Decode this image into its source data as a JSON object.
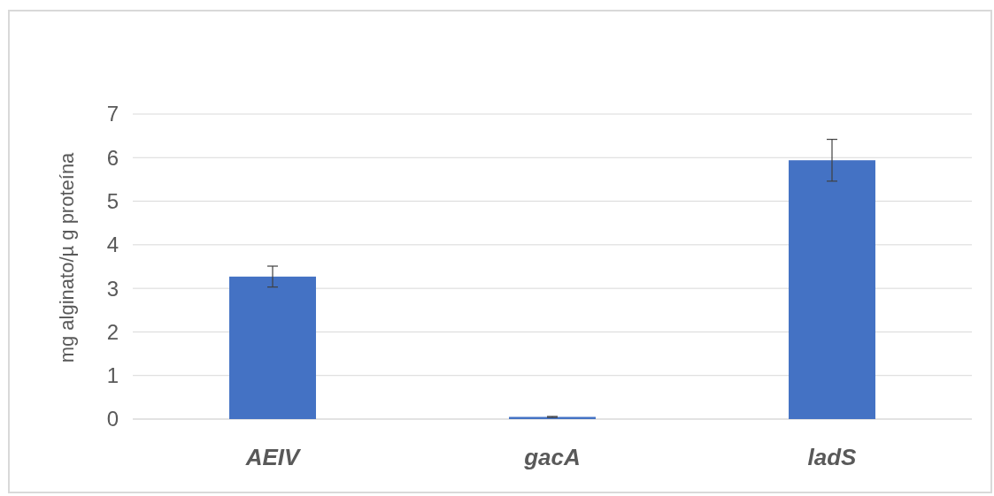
{
  "chart_data": {
    "type": "bar",
    "ylabel": "mg alginato/µ g proteína",
    "categories": [
      "AEIV",
      "gacA",
      "ladS"
    ],
    "values": [
      3.27,
      0.05,
      5.94
    ],
    "errors": [
      0.24,
      0.01,
      0.48
    ],
    "color": "#4472c4",
    "ylim": [
      0,
      7
    ],
    "yticks": [
      0,
      1,
      2,
      3,
      4,
      5,
      6,
      7
    ],
    "grid": "y"
  }
}
